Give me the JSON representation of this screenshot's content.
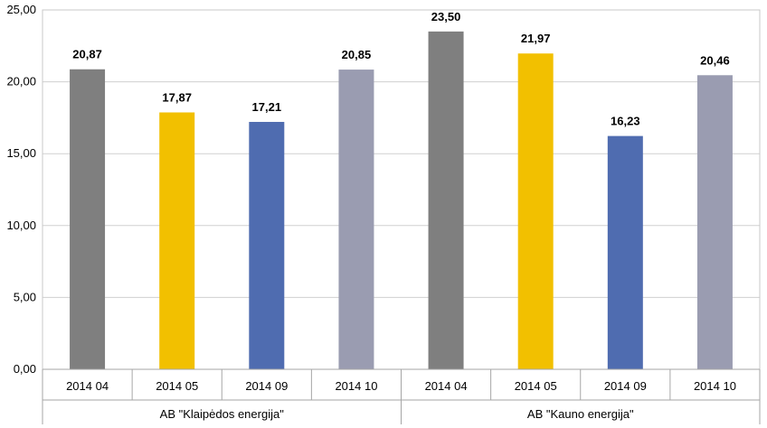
{
  "chart_data": {
    "type": "bar",
    "ylim": [
      0,
      25
    ],
    "ytick_step": 5,
    "ytick_labels": [
      "0,00",
      "5,00",
      "10,00",
      "15,00",
      "20,00",
      "25,00"
    ],
    "grid": true,
    "groups": [
      {
        "name": "AB \"Klaipėdos energija\"",
        "categories": [
          "2014 04",
          "2014 05",
          "2014 09",
          "2014 10"
        ],
        "values": [
          20.87,
          17.87,
          17.21,
          20.85
        ],
        "labels": [
          "20,87",
          "17,87",
          "17,21",
          "20,85"
        ]
      },
      {
        "name": "AB \"Kauno energija\"",
        "categories": [
          "2014 04",
          "2014 05",
          "2014 09",
          "2014 10"
        ],
        "values": [
          23.5,
          21.97,
          16.23,
          20.46
        ],
        "labels": [
          "23,50",
          "21,97",
          "16,23",
          "20,46"
        ]
      }
    ],
    "colors": [
      "#7f7f7f",
      "#f2c000",
      "#4f6cb0",
      "#9a9cb1"
    ]
  }
}
